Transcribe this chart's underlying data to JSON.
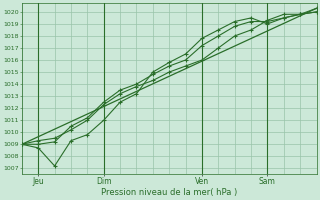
{
  "bg_color": "#cce8d8",
  "grid_color": "#99c4aa",
  "line_color": "#2a6e2a",
  "marker_color": "#2a6e2a",
  "text_color": "#2a6e2a",
  "ylabel_text": "Pression niveau de la mer( hPa )",
  "yticks": [
    1007,
    1008,
    1009,
    1010,
    1011,
    1012,
    1013,
    1014,
    1015,
    1016,
    1017,
    1018,
    1019,
    1020
  ],
  "ylim": [
    1006.5,
    1020.7
  ],
  "xlim": [
    0,
    108
  ],
  "xtick_positions": [
    6,
    30,
    66,
    90
  ],
  "xtick_labels": [
    "Jeu",
    "Dim",
    "Ven",
    "Sam"
  ],
  "vlines_major": [
    6,
    30,
    66,
    90
  ],
  "vgrid_step": 6,
  "line1_x": [
    0,
    6,
    12,
    18,
    24,
    30,
    36,
    42,
    48,
    54,
    60,
    66,
    72,
    78,
    84,
    90,
    96,
    102,
    108
  ],
  "line1_y": [
    1009.0,
    1009.3,
    1009.5,
    1010.2,
    1011.0,
    1012.3,
    1013.2,
    1013.8,
    1014.3,
    1015.0,
    1015.5,
    1016.0,
    1017.0,
    1018.0,
    1018.5,
    1019.3,
    1019.8,
    1019.8,
    1020.0
  ],
  "line2_x": [
    0,
    6,
    12,
    18,
    24,
    30,
    36,
    42,
    48,
    54,
    60,
    66,
    72,
    78,
    84,
    90,
    96,
    102,
    108
  ],
  "line2_y": [
    1009.0,
    1009.0,
    1009.2,
    1010.5,
    1011.2,
    1012.5,
    1013.5,
    1014.0,
    1014.8,
    1015.5,
    1016.0,
    1017.2,
    1018.0,
    1018.8,
    1019.2,
    1019.2,
    1019.5,
    1019.8,
    1020.0
  ],
  "line3_x": [
    0,
    6,
    12,
    18,
    24,
    30,
    36,
    42,
    48,
    54,
    60,
    66,
    72,
    78,
    84,
    90,
    96,
    102,
    108
  ],
  "line3_y": [
    1009.0,
    1008.7,
    1007.2,
    1009.3,
    1009.8,
    1011.0,
    1012.5,
    1013.2,
    1015.0,
    1015.8,
    1016.5,
    1017.8,
    1018.5,
    1019.2,
    1019.5,
    1019.0,
    1019.5,
    1019.8,
    1020.3
  ],
  "line4_x": [
    0,
    108
  ],
  "line4_y": [
    1009.0,
    1020.3
  ]
}
